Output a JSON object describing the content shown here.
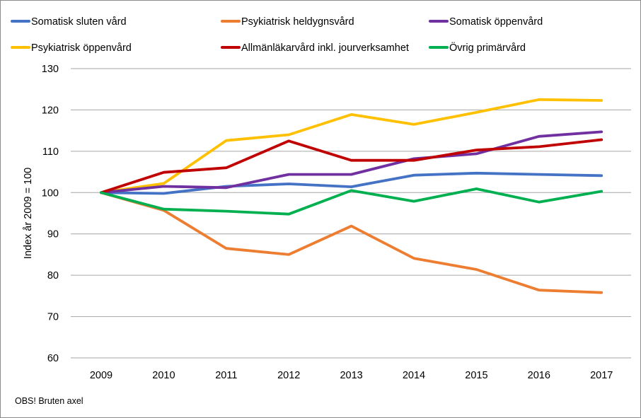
{
  "chart_data": {
    "type": "line",
    "title": "",
    "xlabel": "",
    "ylabel": "Index år 2009 = 100",
    "ylim": [
      60,
      130
    ],
    "yticks": [
      60,
      70,
      80,
      90,
      100,
      110,
      120,
      130
    ],
    "x": [
      "2009",
      "2010",
      "2011",
      "2012",
      "2013",
      "2014",
      "2015",
      "2016",
      "2017"
    ],
    "grid": "horizontal",
    "legend_position": "top",
    "series": [
      {
        "name": "Somatisk sluten vård",
        "color": "#4472C4",
        "values": [
          100,
          99.8,
          101.5,
          102.1,
          101.4,
          104.2,
          104.7,
          104.4,
          104.1
        ]
      },
      {
        "name": "Psykiatrisk heldygnsvård",
        "color": "#ED7D31",
        "values": [
          100,
          95.7,
          86.5,
          85.0,
          91.9,
          84.1,
          81.4,
          76.4,
          75.8
        ]
      },
      {
        "name": "Somatisk öppenvård",
        "color": "#7030A0",
        "values": [
          100,
          101.5,
          101.2,
          104.4,
          104.4,
          108.2,
          109.4,
          113.6,
          114.7
        ]
      },
      {
        "name": "Psykiatrisk öppenvård",
        "color": "#FFC000",
        "values": [
          100,
          102.2,
          112.6,
          114.0,
          118.9,
          116.5,
          119.4,
          122.5,
          122.3
        ]
      },
      {
        "name": "Allmänläkarvård inkl. jourverksamhet",
        "color": "#C00000",
        "values": [
          100,
          104.9,
          106.0,
          112.5,
          107.8,
          107.8,
          110.3,
          111.1,
          112.8
        ]
      },
      {
        "name": "Övrig primärvård",
        "color": "#00B050",
        "values": [
          100,
          96.0,
          95.5,
          94.8,
          100.5,
          97.9,
          100.9,
          97.7,
          100.3
        ]
      }
    ]
  },
  "note": "OBS! Bruten axel"
}
